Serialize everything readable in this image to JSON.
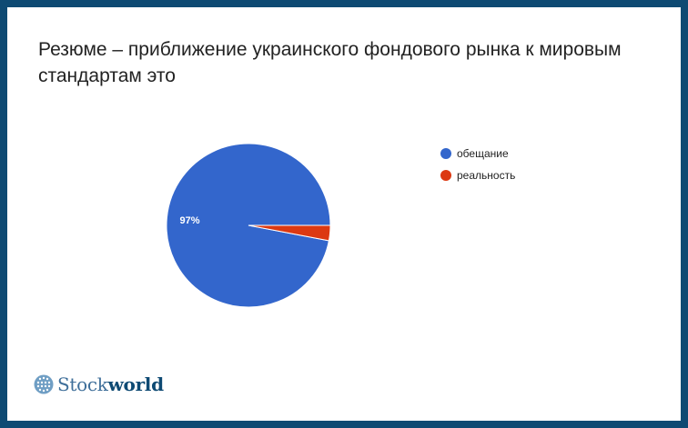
{
  "chart_data": {
    "type": "pie",
    "title": "Резюме – приближение украинского фондового рынка к мировым стандартам это",
    "slices": [
      {
        "label": "обещание",
        "value": 97,
        "color": "#3366cc",
        "data_label": "97%"
      },
      {
        "label": "реальность",
        "value": 3,
        "color": "#dc3912",
        "data_label": ""
      }
    ],
    "legend_position": "right"
  },
  "logo": {
    "text_stock": "Stock",
    "text_world": "world"
  },
  "colors": {
    "frame": "#0e4a73",
    "background": "#ffffff"
  }
}
